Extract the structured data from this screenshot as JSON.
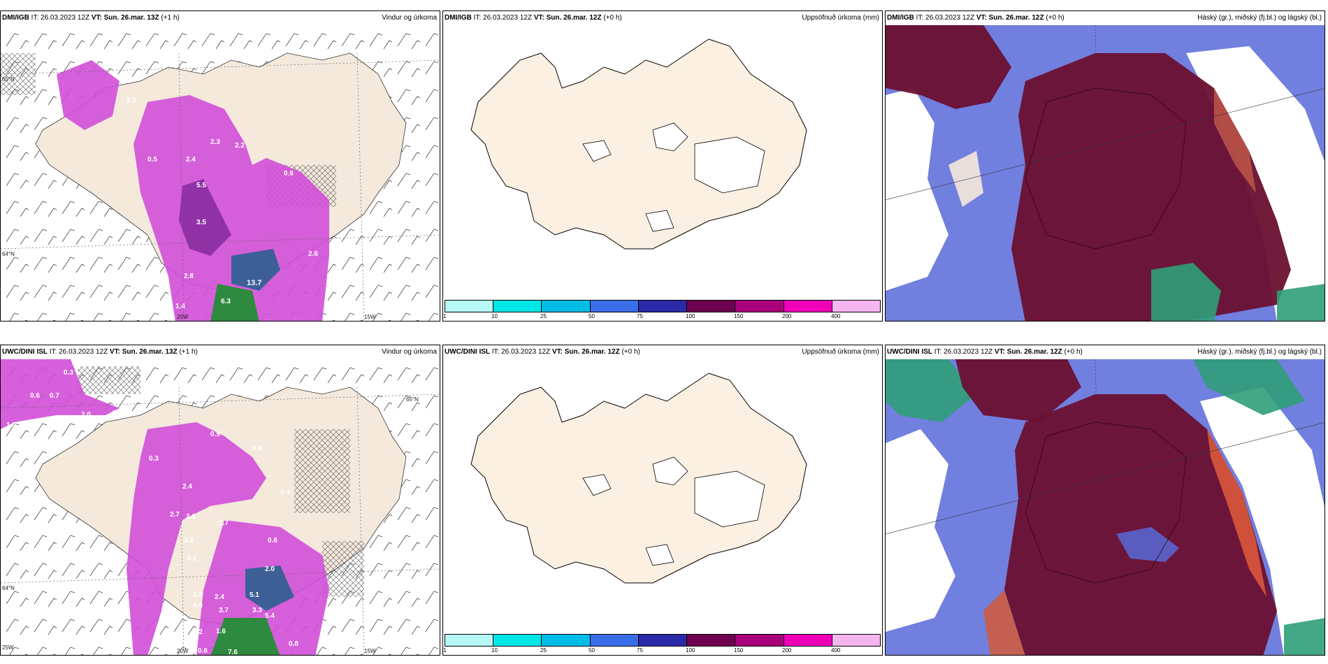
{
  "panels": [
    {
      "source": "DMI/IGB",
      "it": "IT: 26.03.2023 12Z",
      "vt": "VT: Sun. 26.mar. 13Z",
      "offset": "(+1 h)",
      "product": "Vindur og úrkoma",
      "labels": [
        "2.0",
        "2.3",
        "2.2",
        "2.4",
        "0.5",
        "0.6",
        "5.5",
        "3.5",
        "2.8",
        "13.7",
        "6.3",
        "1.4",
        "2.6"
      ],
      "gridlabels": [
        "65°N",
        "64°N",
        "20W",
        "15W"
      ]
    },
    {
      "source": "DMI/IGB",
      "it": "IT: 26.03.2023 12Z",
      "vt": "VT: Sun. 26.mar. 12Z",
      "offset": "(+0 h)",
      "product": "Uppsöfnuð úrkoma (mm)"
    },
    {
      "source": "DMI/IGB",
      "it": "IT: 26.03.2023 12Z",
      "vt": "VT: Sun. 26.mar. 12Z",
      "offset": "(+0 h)",
      "product": "Háský (gr.), miðský (fj.bl.) og lágský (bl.)"
    },
    {
      "source": "UWC/DINI ISL",
      "it": "IT: 26.03.2023 12Z",
      "vt": "VT: Sun. 26.mar. 13Z",
      "offset": "(+1 h)",
      "product": "Vindur og úrkoma",
      "labels": [
        "0.3",
        "0.6",
        "0.7",
        "1.0",
        "2.0",
        "3.0",
        "0.5",
        "0.4",
        "0.3",
        "2.4",
        "2.7",
        "2.0",
        "1.7",
        "3.2",
        "3.1",
        "0.4",
        "0.6",
        "3.8",
        "4.0",
        "2.4",
        "3.7",
        "5.1",
        "3.3",
        "5.4",
        "1.6",
        "2.2",
        "7.6",
        "0.6",
        "2.0",
        "0.8"
      ],
      "gridlabels": [
        "65°N",
        "64°N",
        "25W",
        "20W",
        "15W"
      ]
    },
    {
      "source": "UWC/DINI ISL",
      "it": "IT: 26.03.2023 12Z",
      "vt": "VT: Sun. 26.mar. 12Z",
      "offset": "(+0 h)",
      "product": "Uppsöfnuð úrkoma (mm)"
    },
    {
      "source": "UWC/DINI ISL",
      "it": "IT: 26.03.2023 12Z",
      "vt": "VT: Sun. 26.mar. 12Z",
      "offset": "(+0 h)",
      "product": "Háský (gr.), miðský (fj.bl.) og lágský (bl.)"
    }
  ],
  "colorbar": {
    "ticks": [
      "1",
      "10",
      "25",
      "50",
      "75",
      "100",
      "150",
      "200",
      "400"
    ],
    "colors": [
      "#b7f7f7",
      "#00e6e6",
      "#00bde8",
      "#3a6ee8",
      "#2a2aa8",
      "#6e0050",
      "#a8007a",
      "#f000b8",
      "#f5b6f0"
    ]
  },
  "colors": {
    "land": "#f5e9dc",
    "precip": "#d24fd8",
    "high_cloud": "#6a1030",
    "mid_cloud": "#5868d8",
    "low_cloud": "#2f9e78"
  }
}
